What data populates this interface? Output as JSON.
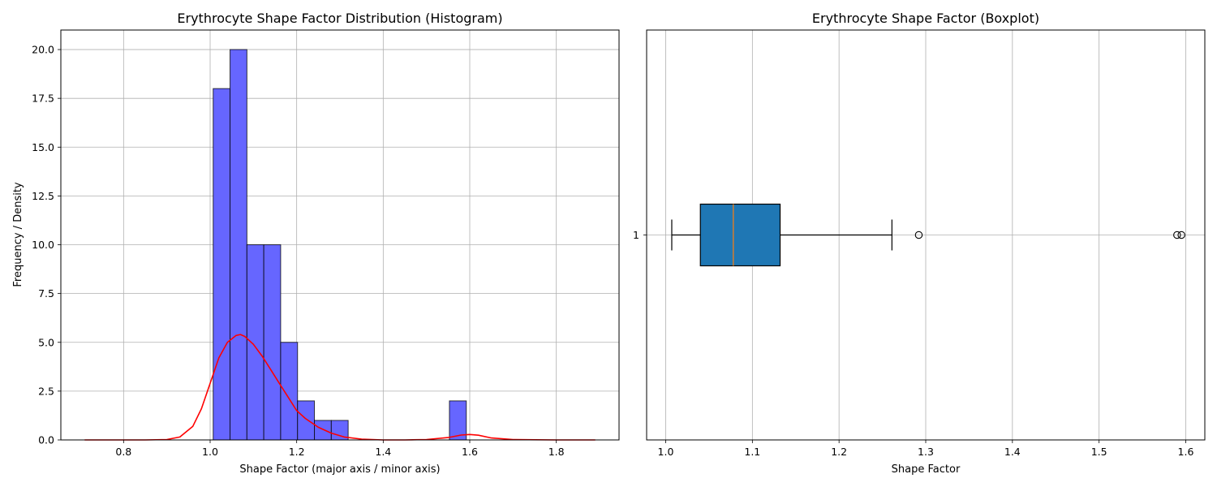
{
  "chart_data": [
    {
      "type": "bar",
      "title": "Erythrocyte Shape Factor Distribution (Histogram)",
      "xlabel": "Shape Factor (major axis / minor axis)",
      "ylabel": "Frequency / Density",
      "xlim": [
        0.655,
        1.945
      ],
      "ylim": [
        0,
        21
      ],
      "xticks": [
        "0.8",
        "1.0",
        "1.2",
        "1.4",
        "1.6",
        "1.8"
      ],
      "yticks": [
        "0.0",
        "2.5",
        "5.0",
        "7.5",
        "10.0",
        "12.5",
        "15.0",
        "17.5",
        "20.0"
      ],
      "grid": true,
      "bins": [
        {
          "x0": 1.007,
          "x1": 1.046,
          "count": 18
        },
        {
          "x0": 1.046,
          "x1": 1.085,
          "count": 20
        },
        {
          "x0": 1.085,
          "x1": 1.124,
          "count": 10
        },
        {
          "x0": 1.124,
          "x1": 1.163,
          "count": 10
        },
        {
          "x0": 1.163,
          "x1": 1.202,
          "count": 5
        },
        {
          "x0": 1.202,
          "x1": 1.241,
          "count": 2
        },
        {
          "x0": 1.241,
          "x1": 1.28,
          "count": 1
        },
        {
          "x0": 1.28,
          "x1": 1.319,
          "count": 1
        },
        {
          "x0": 1.553,
          "x1": 1.592,
          "count": 2
        }
      ],
      "bar_color": "#6666ff",
      "kde": {
        "color": "#ff0000",
        "x": [
          0.71,
          0.8,
          0.85,
          0.9,
          0.93,
          0.96,
          0.98,
          1.0,
          1.02,
          1.04,
          1.06,
          1.07,
          1.08,
          1.1,
          1.12,
          1.14,
          1.16,
          1.18,
          1.2,
          1.22,
          1.25,
          1.28,
          1.31,
          1.35,
          1.4,
          1.45,
          1.5,
          1.55,
          1.58,
          1.6,
          1.62,
          1.65,
          1.7,
          1.8,
          1.89
        ],
        "y": [
          0.0,
          0.0,
          0.0,
          0.02,
          0.15,
          0.7,
          1.6,
          2.9,
          4.2,
          5.0,
          5.35,
          5.4,
          5.3,
          4.9,
          4.3,
          3.6,
          2.9,
          2.2,
          1.5,
          1.1,
          0.65,
          0.35,
          0.15,
          0.04,
          0.0,
          0.0,
          0.02,
          0.12,
          0.25,
          0.28,
          0.24,
          0.1,
          0.02,
          0.0,
          0.0
        ]
      }
    },
    {
      "type": "boxplot",
      "title": "Erythrocyte Shape Factor (Boxplot)",
      "xlabel": "Shape Factor",
      "ylabel": "",
      "orientation": "horizontal",
      "xlim": [
        0.978,
        1.622
      ],
      "xticks": [
        "1.0",
        "1.1",
        "1.2",
        "1.3",
        "1.4",
        "1.5",
        "1.6"
      ],
      "yticks": [
        "1"
      ],
      "grid": true,
      "box": {
        "whisker_low": 1.007,
        "q1": 1.04,
        "median": 1.078,
        "q3": 1.132,
        "whisker_high": 1.261,
        "outliers": [
          1.292,
          1.59,
          1.595
        ],
        "fill": "#1f77b4",
        "median_color": "#ff7f0e"
      }
    }
  ]
}
